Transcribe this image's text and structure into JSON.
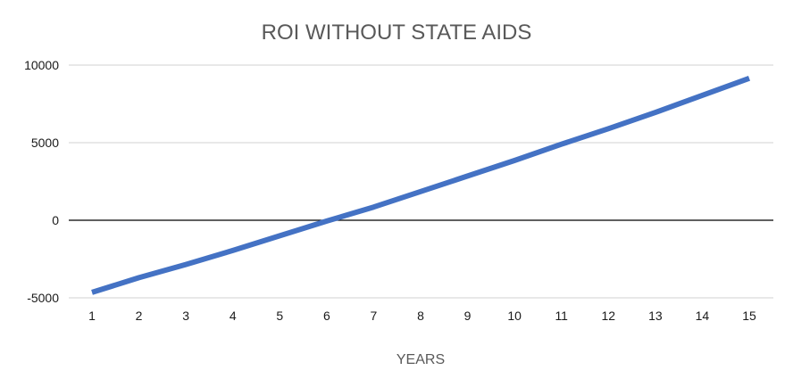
{
  "chart_data": {
    "type": "line",
    "title": "ROI WITHOUT STATE AIDS",
    "xlabel": "YEARS",
    "ylabel": "",
    "x": [
      1,
      2,
      3,
      4,
      5,
      6,
      7,
      8,
      9,
      10,
      11,
      12,
      13,
      14,
      15
    ],
    "series": [
      {
        "values": [
          -4650,
          -3700,
          -2850,
          -1950,
          -1000,
          -50,
          850,
          1850,
          2850,
          3850,
          4900,
          5900,
          6950,
          8050,
          9150
        ],
        "color": "#4472c4"
      }
    ],
    "xlim": [
      1,
      15
    ],
    "ylim": [
      -5000,
      10000
    ],
    "yticks": [
      -5000,
      0,
      5000,
      10000
    ],
    "grid": true,
    "gridline_color": "#d9d9d9",
    "zero_line_color": "#000000"
  }
}
